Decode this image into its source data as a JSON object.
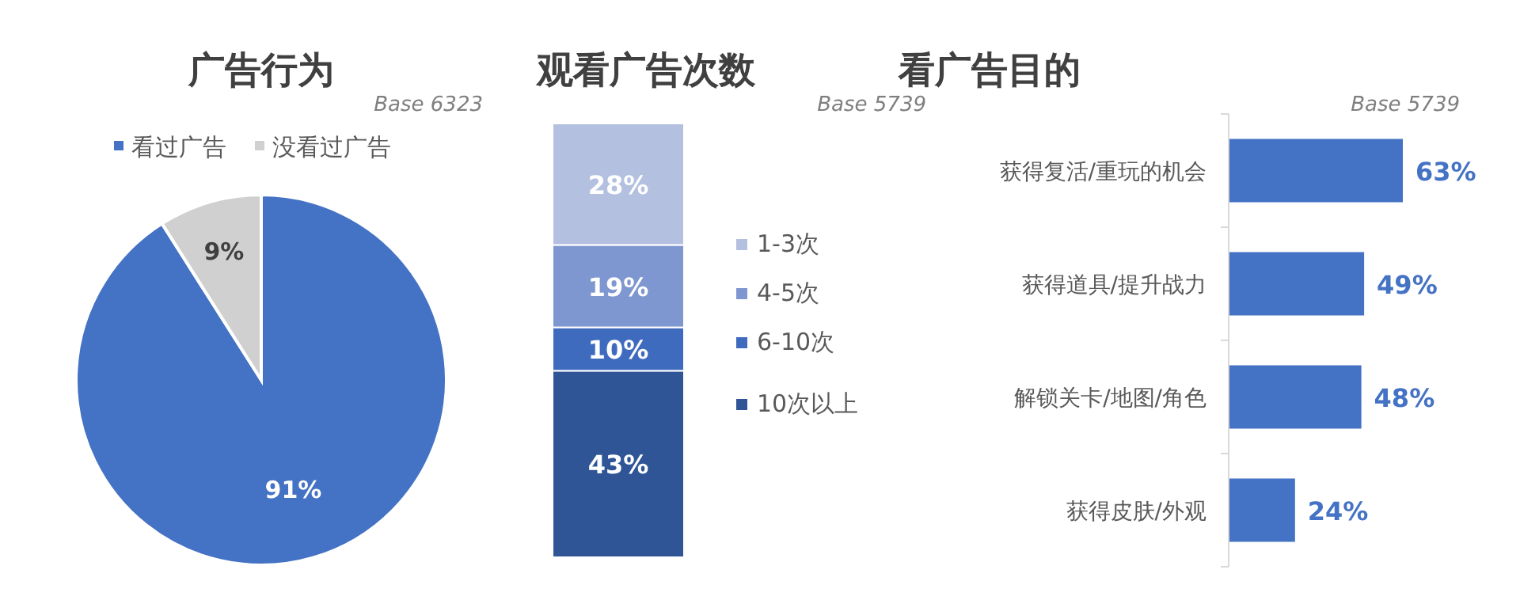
{
  "chart_data": [
    {
      "type": "pie",
      "title": "广告行为",
      "annotations": [
        "Base  6323"
      ],
      "categories": [
        "看过广告",
        "没看过广告"
      ],
      "values": [
        91,
        9
      ],
      "value_labels": [
        "91%",
        "9%"
      ],
      "colors": [
        "#4472c4",
        "#d0d0d0"
      ],
      "legend": "top"
    },
    {
      "type": "bar",
      "title": "观看广告次数",
      "annotations": [
        "Base 5739"
      ],
      "categories": [
        null
      ],
      "stacked": true,
      "legend": "right",
      "series": [
        {
          "name": "10次以上",
          "color": "#2f5597",
          "values": [
            43
          ],
          "value_labels": [
            "43%"
          ]
        },
        {
          "name": "6-10次",
          "color": "#3f6bbf",
          "values": [
            10
          ],
          "value_labels": [
            "10%"
          ]
        },
        {
          "name": "4-5次",
          "color": "#7f97d0",
          "values": [
            19
          ],
          "value_labels": [
            "19%"
          ]
        },
        {
          "name": "1-3次",
          "color": "#b4c0e0",
          "values": [
            28
          ],
          "value_labels": [
            "28%"
          ]
        }
      ]
    },
    {
      "type": "bar",
      "title": "看广告目的",
      "annotations": [
        "Base 5739"
      ],
      "orientation": "horizontal",
      "categories": [
        "获得复活/重玩的机会",
        "获得道具/提升战力",
        "解锁关卡/地图/角色",
        "获得皮肤/外观"
      ],
      "values": [
        63,
        49,
        48,
        24
      ],
      "value_labels": [
        "63%",
        "49%",
        "48%",
        "24%"
      ],
      "color": "#4472c4"
    }
  ]
}
